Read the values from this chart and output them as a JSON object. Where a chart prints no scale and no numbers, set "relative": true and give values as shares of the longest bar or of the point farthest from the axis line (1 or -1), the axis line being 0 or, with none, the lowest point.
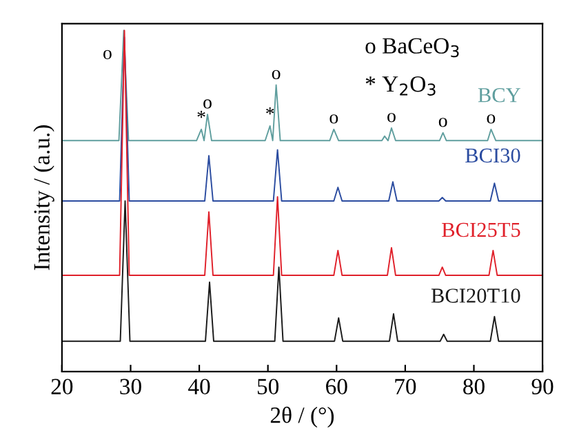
{
  "chart_data": {
    "type": "line",
    "relative": true,
    "xlabel": "2θ / (°)",
    "ylabel": "Intensity / (a.u.)",
    "xlim": [
      20,
      90
    ],
    "xticks": [
      20,
      30,
      40,
      50,
      60,
      70,
      80,
      90
    ],
    "grid": false,
    "legend": false,
    "series": [
      {
        "name": "BCY",
        "color": "#5f9e9e",
        "x": [
          20,
          28.3,
          29,
          29.7,
          39.6,
          40.3,
          40.7,
          41.2,
          41.8,
          49.6,
          50.3,
          50.7,
          51.2,
          51.8,
          59,
          59.6,
          60.3,
          66.6,
          67,
          67.5,
          68,
          68.6,
          75,
          75.5,
          76,
          82,
          82.5,
          83.2,
          90
        ],
        "values": [
          0.677,
          0.677,
          1.0,
          0.677,
          0.677,
          0.71,
          0.677,
          0.754,
          0.677,
          0.677,
          0.72,
          0.677,
          0.84,
          0.677,
          0.677,
          0.71,
          0.677,
          0.677,
          0.69,
          0.677,
          0.714,
          0.677,
          0.677,
          0.7,
          0.677,
          0.677,
          0.71,
          0.677,
          0.677
        ]
      },
      {
        "name": "BCI30",
        "color": "#2b4ca0",
        "x": [
          20,
          28.4,
          29.1,
          29.8,
          40.8,
          41.4,
          42,
          50.8,
          51.4,
          52,
          59.6,
          60.2,
          60.8,
          67.6,
          68.2,
          68.8,
          74.9,
          75.4,
          75.9,
          82.4,
          83,
          83.6,
          90
        ],
        "values": [
          0.5,
          0.5,
          0.98,
          0.5,
          0.5,
          0.633,
          0.5,
          0.5,
          0.65,
          0.5,
          0.5,
          0.54,
          0.5,
          0.5,
          0.556,
          0.5,
          0.5,
          0.51,
          0.5,
          0.5,
          0.552,
          0.5,
          0.5
        ]
      },
      {
        "name": "BCI25T5",
        "color": "#e0202a",
        "x": [
          20,
          28.4,
          29.1,
          29.8,
          40.8,
          41.4,
          42,
          50.8,
          51.4,
          52,
          59.6,
          60.2,
          60.8,
          67.4,
          68,
          68.6,
          74.9,
          75.4,
          75.9,
          82.2,
          82.8,
          83.4,
          90
        ],
        "values": [
          0.282,
          0.282,
          1.0,
          0.282,
          0.282,
          0.468,
          0.282,
          0.282,
          0.512,
          0.282,
          0.282,
          0.355,
          0.282,
          0.282,
          0.363,
          0.282,
          0.282,
          0.306,
          0.282,
          0.282,
          0.355,
          0.282,
          0.282
        ]
      },
      {
        "name": "BCI20T10",
        "color": "#1a1a1a",
        "x": [
          20,
          28.5,
          29.2,
          29.9,
          40.9,
          41.5,
          42.1,
          51,
          51.6,
          52.2,
          59.7,
          60.3,
          60.9,
          67.7,
          68.3,
          68.9,
          75.1,
          75.6,
          76.1,
          82.4,
          83,
          83.6,
          90
        ],
        "values": [
          0.089,
          0.089,
          0.5,
          0.089,
          0.089,
          0.262,
          0.089,
          0.089,
          0.306,
          0.089,
          0.089,
          0.157,
          0.089,
          0.089,
          0.169,
          0.089,
          0.089,
          0.109,
          0.089,
          0.089,
          0.161,
          0.089,
          0.089
        ]
      }
    ],
    "annotations": [
      "o BaCeO$_{3}$",
      "* Y$_{2}$O$_{3}$",
      {
        "text": "o",
        "x": 29,
        "y": 1.0
      },
      {
        "text": "*",
        "x": 40.3,
        "y": 0.71
      },
      {
        "text": "o",
        "x": 41.2,
        "y": 0.754
      },
      {
        "text": "*",
        "x": 50.3,
        "y": 0.72
      },
      {
        "text": "o",
        "x": 51.2,
        "y": 0.84
      },
      {
        "text": "o",
        "x": 59.6,
        "y": 0.71
      },
      {
        "text": "o",
        "x": 68,
        "y": 0.714
      },
      {
        "text": "o",
        "x": 75.5,
        "y": 0.7
      },
      {
        "text": "o",
        "x": 82.5,
        "y": 0.71
      }
    ]
  }
}
